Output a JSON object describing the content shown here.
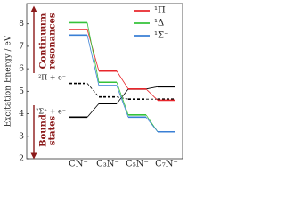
{
  "chart_data": {
    "type": "level",
    "ylabel": "Excitation Energy / eV",
    "categories": [
      "CN⁻",
      "C₃N⁻",
      "C₅N⁻",
      "C₇N⁻"
    ],
    "ylim": [
      2,
      8.9
    ],
    "yticks": [
      2,
      3,
      4,
      5,
      6,
      7,
      8
    ],
    "legend": "upper right",
    "series": [
      {
        "name": "¹Π",
        "color": "#e8262b",
        "values": [
          7.75,
          5.9,
          5.1,
          4.6
        ]
      },
      {
        "name": "¹Δ",
        "color": "#35c23a",
        "values": [
          8.05,
          5.4,
          3.95,
          3.2
        ]
      },
      {
        "name": "¹Σ⁻",
        "color": "#3a7fd5",
        "values": [
          7.5,
          5.25,
          3.85,
          3.2
        ]
      }
    ],
    "thresholds": [
      {
        "label": "²Π + e⁻",
        "color": "#000000",
        "dashed": true,
        "values": [
          5.35,
          4.75,
          4.65,
          4.65
        ]
      },
      {
        "label": "²Σ⁺ + e⁻",
        "color": "#000000",
        "dashed": false,
        "values": [
          3.85,
          4.45,
          5.1,
          5.2
        ]
      }
    ],
    "annotations": [
      {
        "lines": [
          "Continuum",
          "resonances"
        ],
        "direction": "up"
      },
      {
        "lines": [
          "Bound",
          "states"
        ],
        "direction": "down"
      }
    ]
  }
}
